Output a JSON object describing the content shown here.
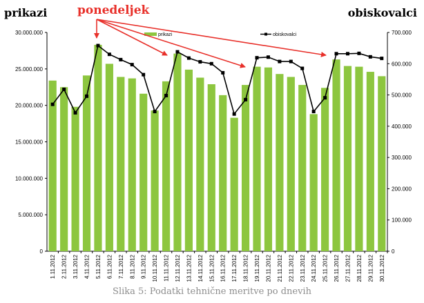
{
  "left_title": "prikazi",
  "right_title": "obiskovalci",
  "annotation": "ponedeljek",
  "caption": "Slika 5: Podatki tehnične meritve po dnevih",
  "colors": {
    "bar": "#8dc63f",
    "line": "#000000",
    "arrow": "#e8302a"
  },
  "chart_data": {
    "type": "bar+line",
    "categories": [
      "1.11.2012",
      "2.11.2012",
      "3.11.2012",
      "4.11.2012",
      "5.11.2012",
      "6.11.2012",
      "7.11.2012",
      "8.11.2012",
      "9.11.2012",
      "10.11.2012",
      "11.11.2012",
      "12.11.2012",
      "13.11.2012",
      "14.11.2012",
      "15.11.2012",
      "16.11.2012",
      "17.11.2012",
      "18.11.2012",
      "19.11.2012",
      "20.11.2012",
      "21.11.2012",
      "22.11.2012",
      "23.11.2012",
      "24.11.2012",
      "25.11.2012",
      "26.11.2012",
      "27.11.2012",
      "28.11.2012",
      "29.11.2012",
      "30.11.2012"
    ],
    "series": [
      {
        "name": "prikazi",
        "type": "bar",
        "axis": "left",
        "values": [
          23400000,
          22500000,
          19800000,
          24100000,
          28300000,
          25700000,
          23900000,
          23700000,
          21600000,
          19300000,
          23300000,
          27100000,
          24900000,
          23800000,
          22900000,
          21400000,
          18300000,
          22800000,
          25300000,
          25200000,
          24300000,
          23900000,
          22800000,
          18800000,
          22400000,
          26300000,
          25400000,
          25300000,
          24600000,
          24000000
        ]
      },
      {
        "name": "obiskovalci",
        "type": "line",
        "axis": "right",
        "values": [
          470,
          518,
          443,
          496,
          658,
          630,
          613,
          597,
          565,
          447,
          498,
          638,
          618,
          606,
          600,
          571,
          439,
          485,
          619,
          621,
          607,
          607,
          585,
          447,
          491,
          632,
          632,
          633,
          622,
          617
        ]
      }
    ],
    "y_left": {
      "min": 0,
      "max": 30000000,
      "ticks": [
        "0",
        "5.000.000",
        "10.000.000",
        "15.000.000",
        "20.000.000",
        "25.000.000",
        "30.000.000"
      ]
    },
    "y_right": {
      "min": 0,
      "max": 700,
      "ticks": [
        "0",
        "100.000",
        "200.000",
        "300.000",
        "400.000",
        "500.000",
        "600.000",
        "700.000"
      ]
    },
    "legend": {
      "bar_label": "prikazi",
      "line_label": "obiskovalci",
      "placement": "top"
    },
    "annotation_targets": [
      "5.11.2012",
      "12.11.2012",
      "19.11.2012",
      "26.11.2012"
    ]
  }
}
